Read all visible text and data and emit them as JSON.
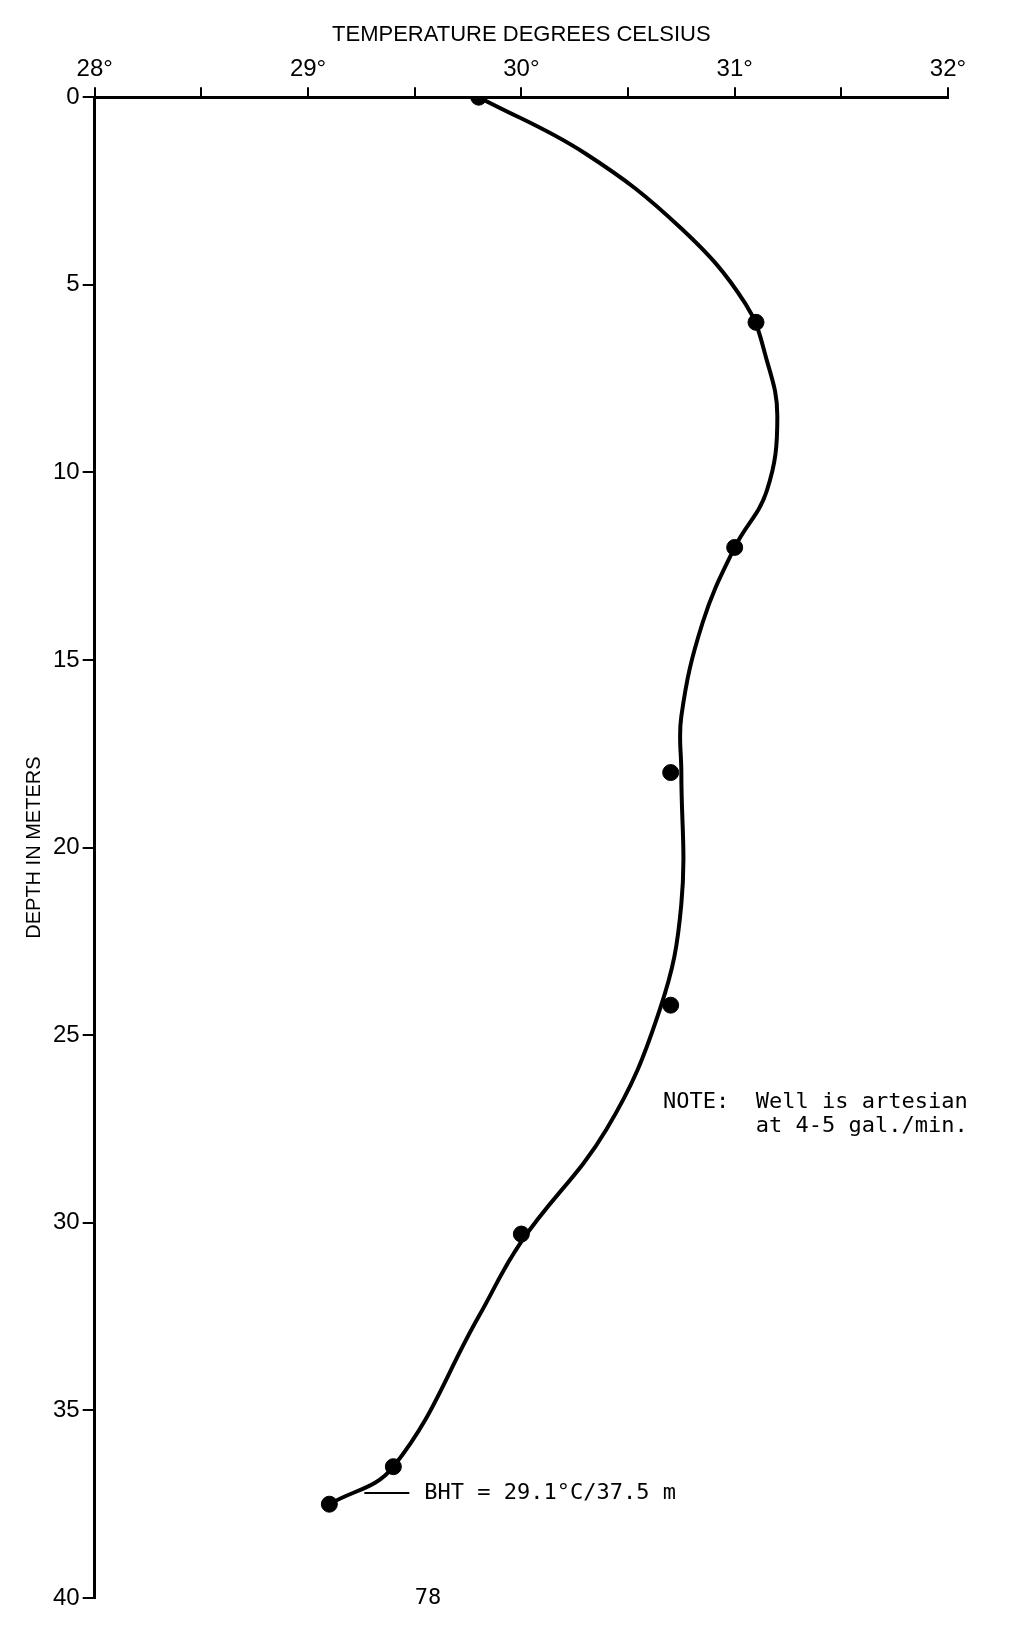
{
  "chart_data": {
    "type": "line",
    "xlabel": "TEMPERATURE DEGREES CELSIUS",
    "ylabel": "DEPTH IN METERS",
    "xlim": [
      28,
      32
    ],
    "xticks": [
      {
        "value": 28,
        "label": "28°"
      },
      {
        "value": 28.5,
        "label": null
      },
      {
        "value": 29,
        "label": "29°"
      },
      {
        "value": 29.5,
        "label": null
      },
      {
        "value": 30,
        "label": "30°"
      },
      {
        "value": 30.5,
        "label": null
      },
      {
        "value": 31,
        "label": "31°"
      },
      {
        "value": 31.5,
        "label": null
      },
      {
        "value": 32,
        "label": "32°"
      }
    ],
    "ylim": [
      40,
      0
    ],
    "yticks": [
      0,
      5,
      10,
      15,
      20,
      25,
      30,
      35,
      40
    ],
    "grid": false,
    "legend": false,
    "series": [
      {
        "type": "line",
        "color": "#000000",
        "marker": "none",
        "x": [
          29.8,
          30.3,
          30.75,
          31.05,
          31.15,
          31.2,
          31.15,
          31.0,
          30.85,
          30.75,
          30.75,
          30.75,
          30.65,
          30.4,
          30.0,
          29.8,
          29.4,
          29.1
        ],
        "values": [
          0,
          1.5,
          3.5,
          5.5,
          7,
          8.5,
          10.5,
          12,
          14,
          16.5,
          18,
          21.5,
          24.3,
          27.5,
          30.5,
          32.5,
          36.5,
          37.5
        ]
      },
      {
        "type": "scatter",
        "color": "#000000",
        "marker": "circle",
        "x": [
          29.8,
          31.1,
          31.0,
          30.7,
          30.7,
          30.0,
          29.4,
          29.1
        ],
        "values": [
          0,
          6,
          12,
          18,
          24.2,
          30.3,
          36.5,
          37.5
        ]
      }
    ],
    "annotations": [
      "BHT = 29.1°C/37.5 m",
      "NOTE:  Well is artesian\n       at 4-5 gal./min.",
      "78"
    ]
  }
}
